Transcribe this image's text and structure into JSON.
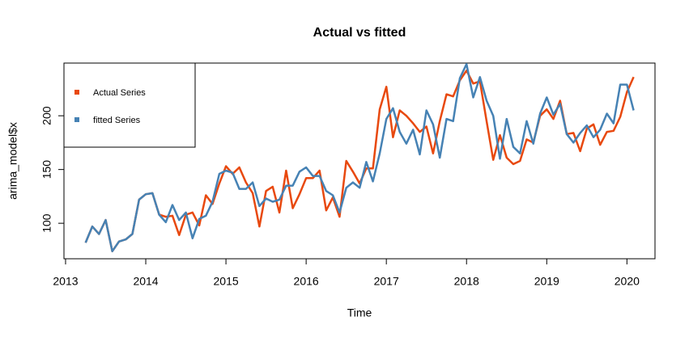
{
  "chart_data": {
    "type": "line",
    "title": "Actual vs fitted",
    "x_label": "Time",
    "y_label": "arima_model$x",
    "x": [
      2013.25,
      2013.333,
      2013.417,
      2013.5,
      2013.583,
      2013.667,
      2013.75,
      2013.833,
      2013.917,
      2014,
      2014.083,
      2014.167,
      2014.25,
      2014.333,
      2014.417,
      2014.5,
      2014.583,
      2014.667,
      2014.75,
      2014.833,
      2014.917,
      2015,
      2015.083,
      2015.167,
      2015.25,
      2015.333,
      2015.417,
      2015.5,
      2015.583,
      2015.667,
      2015.75,
      2015.833,
      2015.917,
      2016,
      2016.083,
      2016.167,
      2016.25,
      2016.333,
      2016.417,
      2016.5,
      2016.583,
      2016.667,
      2016.75,
      2016.833,
      2016.917,
      2017,
      2017.083,
      2017.167,
      2017.25,
      2017.333,
      2017.417,
      2017.5,
      2017.583,
      2017.667,
      2017.75,
      2017.833,
      2017.917,
      2018,
      2018.083,
      2018.167,
      2018.25,
      2018.333,
      2018.417,
      2018.5,
      2018.583,
      2018.667,
      2018.75,
      2018.833,
      2018.917,
      2019,
      2019.083,
      2019.167,
      2019.25,
      2019.333,
      2019.417,
      2019.5,
      2019.583,
      2019.667,
      2019.75,
      2019.833,
      2019.917,
      2020,
      2020.083
    ],
    "series": [
      {
        "name": "Actual Series",
        "color": "#e8490f",
        "values": [
          82,
          97,
          90,
          103,
          74,
          83,
          85,
          90,
          122,
          127,
          128,
          108,
          106,
          107,
          89,
          108,
          110,
          98,
          126,
          118,
          137,
          153,
          146,
          152,
          138,
          128,
          97,
          130,
          134,
          110,
          149,
          114,
          127,
          142,
          142,
          149,
          112,
          124,
          106,
          158,
          148,
          137,
          151,
          151,
          206,
          227,
          180,
          205,
          200,
          193,
          185,
          190,
          165,
          195,
          220,
          218,
          233,
          242,
          230,
          232,
          195,
          159,
          182,
          161,
          155,
          158,
          178,
          175,
          200,
          206,
          197,
          214,
          183,
          184,
          167,
          188,
          192,
          173,
          185,
          186,
          199,
          222,
          236
        ]
      },
      {
        "name": "fitted Series",
        "color": "#4682b4",
        "values": [
          82,
          97,
          90,
          103,
          74,
          83,
          85,
          90,
          122,
          127,
          128,
          108,
          101,
          117,
          103,
          110,
          86,
          104,
          107,
          120,
          146,
          149,
          147,
          132,
          132,
          138,
          116,
          123,
          120,
          122,
          135,
          135,
          148,
          152,
          144,
          144,
          130,
          126,
          110,
          133,
          138,
          133,
          157,
          139,
          165,
          197,
          207,
          185,
          174,
          187,
          164,
          205,
          192,
          161,
          197,
          195,
          235,
          248,
          217,
          236,
          214,
          200,
          160,
          197,
          171,
          165,
          195,
          174,
          202,
          217,
          201,
          211,
          183,
          175,
          184,
          191,
          180,
          187,
          202,
          193,
          229,
          229,
          205
        ]
      }
    ],
    "xlim": [
      2012.98,
      2020.35
    ],
    "ylim": [
      67,
      249
    ],
    "xticks": [
      2013,
      2014,
      2015,
      2016,
      2017,
      2018,
      2019,
      2020
    ],
    "yticks": [
      100,
      150,
      200
    ],
    "legend": "top-left"
  }
}
